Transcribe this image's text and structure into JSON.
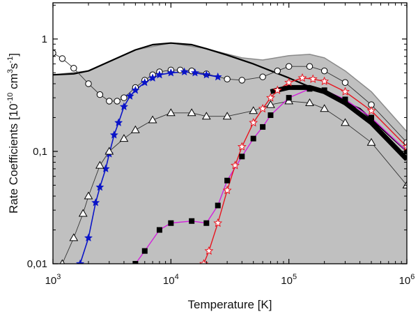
{
  "chart_data": {
    "type": "line",
    "title": "",
    "xlabel": "Temperature [K]",
    "ylabel": {
      "prefix": "Rate Coefficients [10",
      "exp1": "-10",
      "mid1": " cm",
      "exp2": "3",
      "mid2": "s",
      "exp3": "-1",
      "suffix": "]"
    },
    "xscale": "log",
    "yscale": "log",
    "xlim": [
      1000,
      1000000
    ],
    "ylim": [
      0.01,
      2.1
    ],
    "x_ticks": [
      {
        "value": 1000,
        "base": "10",
        "exp": "3"
      },
      {
        "value": 10000,
        "base": "10",
        "exp": "4"
      },
      {
        "value": 100000,
        "base": "10",
        "exp": "5"
      },
      {
        "value": 1000000,
        "base": "10",
        "exp": "6"
      }
    ],
    "y_ticks": [
      {
        "value": 0.01,
        "label": "0,01"
      },
      {
        "value": 0.1,
        "label": "0,1"
      },
      {
        "value": 1,
        "label": "1"
      }
    ],
    "colors": {
      "shade": "#c0c0c0",
      "shade_upper": "#8a8a8a",
      "black": "#000000",
      "blue": "#0a14c8",
      "red": "#e8141e",
      "magenta": "#d21edc",
      "thin": "#333333"
    },
    "series": [
      {
        "name": "shaded-band-upper",
        "style": "grey-line",
        "x": [
          1000,
          2000,
          5000,
          10000,
          20000,
          40000,
          60000,
          100000,
          150000,
          200000,
          300000,
          500000,
          1000000
        ],
        "y": [
          0.48,
          0.52,
          0.8,
          0.92,
          0.82,
          0.68,
          0.65,
          0.71,
          0.73,
          0.68,
          0.52,
          0.34,
          0.15
        ]
      },
      {
        "name": "solid-black",
        "style": "line",
        "x": [
          1000,
          1500,
          2000,
          3000,
          5000,
          7000,
          10000,
          15000,
          20000,
          30000,
          50000,
          100000,
          200000,
          400000,
          1000000
        ],
        "y": [
          0.48,
          0.49,
          0.52,
          0.63,
          0.8,
          0.89,
          0.92,
          0.89,
          0.82,
          0.72,
          0.6,
          0.45,
          0.33,
          0.24,
          0.1
        ]
      },
      {
        "name": "open-circles",
        "style": "open-circle",
        "x": [
          1000,
          1200,
          1500,
          2000,
          2500,
          3000,
          3500,
          4000,
          5000,
          6000,
          7000,
          8000,
          10000,
          12000,
          15000,
          20000,
          30000,
          40000,
          60000,
          80000,
          100000,
          150000,
          200000,
          300000,
          500000,
          1000000
        ],
        "y": [
          0.75,
          0.67,
          0.55,
          0.4,
          0.32,
          0.28,
          0.28,
          0.3,
          0.37,
          0.43,
          0.48,
          0.51,
          0.53,
          0.53,
          0.52,
          0.49,
          0.44,
          0.43,
          0.46,
          0.52,
          0.57,
          0.57,
          0.52,
          0.41,
          0.26,
          0.12
        ]
      },
      {
        "name": "blue-stars",
        "style": "blue-star",
        "x": [
          1700,
          2000,
          2300,
          2500,
          2800,
          3000,
          3300,
          3600,
          4000,
          4500,
          5000,
          6000,
          7000,
          8000,
          10000,
          13000,
          16000,
          20000,
          25000
        ],
        "y": [
          0.01,
          0.017,
          0.035,
          0.048,
          0.07,
          0.095,
          0.14,
          0.18,
          0.25,
          0.31,
          0.35,
          0.41,
          0.45,
          0.48,
          0.5,
          0.51,
          0.5,
          0.48,
          0.46
        ]
      },
      {
        "name": "open-triangles",
        "style": "open-triangle",
        "x": [
          1200,
          1500,
          1800,
          2000,
          2500,
          3000,
          4000,
          5000,
          7000,
          10000,
          15000,
          20000,
          30000,
          50000,
          70000,
          100000,
          150000,
          200000,
          300000,
          500000,
          1000000
        ],
        "y": [
          0.01,
          0.017,
          0.028,
          0.04,
          0.075,
          0.1,
          0.13,
          0.155,
          0.19,
          0.22,
          0.22,
          0.205,
          0.205,
          0.23,
          0.26,
          0.28,
          0.27,
          0.24,
          0.18,
          0.12,
          0.05
        ]
      },
      {
        "name": "magenta-squares",
        "style": "magenta-square",
        "x": [
          5000,
          6000,
          8000,
          10000,
          15000,
          20000,
          25000,
          30000,
          40000,
          50000,
          60000,
          70000,
          100000,
          150000,
          200000,
          300000,
          500000,
          1000000
        ],
        "y": [
          0.01,
          0.013,
          0.02,
          0.023,
          0.024,
          0.023,
          0.033,
          0.055,
          0.09,
          0.13,
          0.165,
          0.21,
          0.3,
          0.36,
          0.35,
          0.29,
          0.2,
          0.1
        ]
      },
      {
        "name": "red-open-stars",
        "style": "red-star",
        "x": [
          19000,
          21000,
          25000,
          30000,
          35000,
          40000,
          50000,
          60000,
          70000,
          80000,
          100000,
          130000,
          160000,
          200000,
          300000,
          500000,
          1000000
        ],
        "y": [
          0.01,
          0.013,
          0.023,
          0.045,
          0.075,
          0.11,
          0.18,
          0.24,
          0.3,
          0.35,
          0.41,
          0.45,
          0.44,
          0.42,
          0.34,
          0.23,
          0.11
        ]
      },
      {
        "name": "thick-black-band",
        "style": "thick-line",
        "x": [
          70000,
          100000,
          150000,
          200000,
          300000,
          500000,
          1000000
        ],
        "y": [
          0.34,
          0.37,
          0.37,
          0.34,
          0.27,
          0.18,
          0.085
        ]
      }
    ]
  }
}
